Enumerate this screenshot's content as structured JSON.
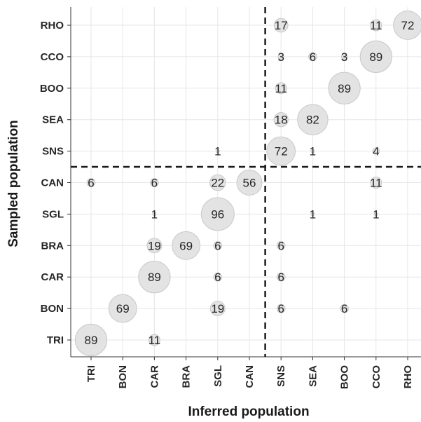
{
  "chart_data": {
    "type": "scatter",
    "xlabel": "Inferred population",
    "ylabel": "Sampled population",
    "x_categories": [
      "TRI",
      "BON",
      "CAR",
      "BRA",
      "SGL",
      "CAN",
      "SNS",
      "SEA",
      "BOO",
      "CCO",
      "RHO"
    ],
    "y_categories": [
      "TRI",
      "BON",
      "CAR",
      "BRA",
      "SGL",
      "CAN",
      "SNS",
      "SEA",
      "BOO",
      "CCO",
      "RHO"
    ],
    "size_metric": "percent",
    "points": [
      {
        "sampled": "RHO",
        "inferred": "SNS",
        "value": 17
      },
      {
        "sampled": "RHO",
        "inferred": "CCO",
        "value": 11
      },
      {
        "sampled": "RHO",
        "inferred": "RHO",
        "value": 72
      },
      {
        "sampled": "CCO",
        "inferred": "SNS",
        "value": 3
      },
      {
        "sampled": "CCO",
        "inferred": "SEA",
        "value": 6
      },
      {
        "sampled": "CCO",
        "inferred": "BOO",
        "value": 3
      },
      {
        "sampled": "CCO",
        "inferred": "CCO",
        "value": 89
      },
      {
        "sampled": "BOO",
        "inferred": "SNS",
        "value": 11
      },
      {
        "sampled": "BOO",
        "inferred": "BOO",
        "value": 89
      },
      {
        "sampled": "SEA",
        "inferred": "SNS",
        "value": 18
      },
      {
        "sampled": "SEA",
        "inferred": "SEA",
        "value": 82
      },
      {
        "sampled": "SNS",
        "inferred": "SGL",
        "value": 1
      },
      {
        "sampled": "SNS",
        "inferred": "SNS",
        "value": 72
      },
      {
        "sampled": "SNS",
        "inferred": "SEA",
        "value": 1
      },
      {
        "sampled": "SNS",
        "inferred": "CCO",
        "value": 4
      },
      {
        "sampled": "CAN",
        "inferred": "TRI",
        "value": 6
      },
      {
        "sampled": "CAN",
        "inferred": "CAR",
        "value": 6
      },
      {
        "sampled": "CAN",
        "inferred": "SGL",
        "value": 22
      },
      {
        "sampled": "CAN",
        "inferred": "CAN",
        "value": 56
      },
      {
        "sampled": "CAN",
        "inferred": "CCO",
        "value": 11
      },
      {
        "sampled": "SGL",
        "inferred": "CAR",
        "value": 1
      },
      {
        "sampled": "SGL",
        "inferred": "SGL",
        "value": 96
      },
      {
        "sampled": "SGL",
        "inferred": "SEA",
        "value": 1
      },
      {
        "sampled": "SGL",
        "inferred": "CCO",
        "value": 1
      },
      {
        "sampled": "BRA",
        "inferred": "CAR",
        "value": 19
      },
      {
        "sampled": "BRA",
        "inferred": "BRA",
        "value": 69
      },
      {
        "sampled": "BRA",
        "inferred": "SGL",
        "value": 6
      },
      {
        "sampled": "BRA",
        "inferred": "SNS",
        "value": 6
      },
      {
        "sampled": "CAR",
        "inferred": "CAR",
        "value": 89
      },
      {
        "sampled": "CAR",
        "inferred": "SGL",
        "value": 6
      },
      {
        "sampled": "CAR",
        "inferred": "SNS",
        "value": 6
      },
      {
        "sampled": "BON",
        "inferred": "BON",
        "value": 69
      },
      {
        "sampled": "BON",
        "inferred": "SGL",
        "value": 19
      },
      {
        "sampled": "BON",
        "inferred": "SNS",
        "value": 6
      },
      {
        "sampled": "BON",
        "inferred": "BOO",
        "value": 6
      },
      {
        "sampled": "TRI",
        "inferred": "TRI",
        "value": 89
      },
      {
        "sampled": "TRI",
        "inferred": "CAR",
        "value": 11
      }
    ],
    "divider_after_x": "CAN",
    "divider_after_y": "CAN",
    "grid": true,
    "colors": {
      "bubble_fill": "#e3e3e3",
      "bubble_stroke": "#c9c9c9",
      "gridline": "#e6e6e6",
      "axis": "#333333",
      "divider": "#1a1a1a",
      "text": "#262626"
    }
  }
}
